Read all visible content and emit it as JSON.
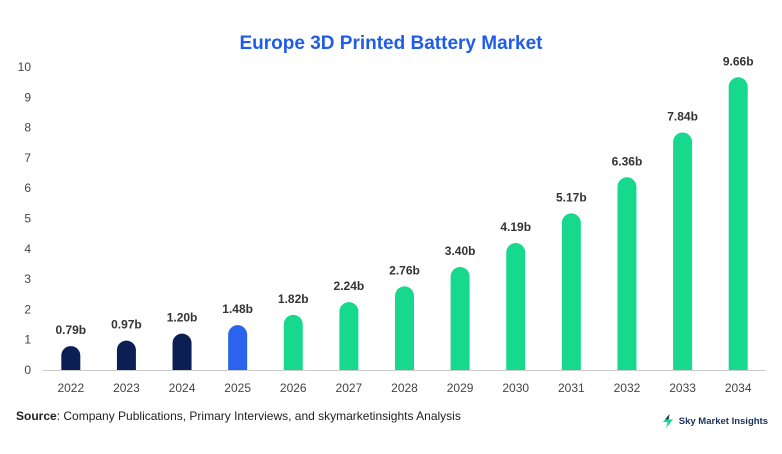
{
  "colors": {
    "title": "#1f5de8",
    "historical": "#0b1f55",
    "base_year": "#2c63ee",
    "forecast": "#16d98e",
    "axis": "#cccccc"
  },
  "chart_data": {
    "type": "bar",
    "title": "Europe 3D Printed Battery Market",
    "xlabel": "",
    "ylabel": "",
    "ylim": [
      0,
      10
    ],
    "yticks": [
      "0",
      "1",
      "2",
      "3",
      "4",
      "5",
      "6",
      "7",
      "8",
      "9",
      "10"
    ],
    "grid": false,
    "categories": [
      "2022",
      "2023",
      "2024",
      "2025",
      "2026",
      "2027",
      "2028",
      "2029",
      "2030",
      "2031",
      "2032",
      "2033",
      "2034"
    ],
    "values": [
      0.79,
      0.97,
      1.2,
      1.48,
      1.82,
      2.24,
      2.76,
      3.4,
      4.19,
      5.17,
      6.36,
      7.84,
      9.66
    ],
    "data_labels": [
      "0.79b",
      "0.97b",
      "1.20b",
      "1.48b",
      "1.82b",
      "2.24b",
      "2.76b",
      "3.40b",
      "4.19b",
      "5.17b",
      "6.36b",
      "7.84b",
      "9.66b"
    ],
    "bar_groups": [
      "historical",
      "historical",
      "historical",
      "base_year",
      "forecast",
      "forecast",
      "forecast",
      "forecast",
      "forecast",
      "forecast",
      "forecast",
      "forecast",
      "forecast"
    ]
  },
  "footer": {
    "source_label": "Source",
    "source_text": ": Company Publications, Primary Interviews, and skymarketinsights Analysis",
    "brand": "Sky Market Insights",
    "brand_icon": "lightning-icon"
  }
}
